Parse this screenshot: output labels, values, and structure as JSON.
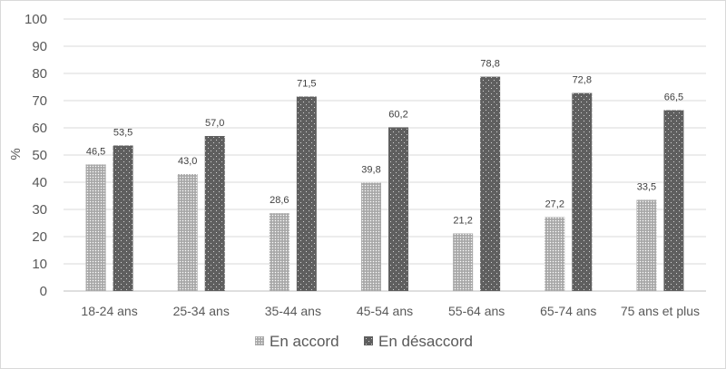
{
  "chart_data": {
    "type": "bar",
    "title": "",
    "xlabel": "",
    "ylabel": "%",
    "ylim": [
      0,
      100
    ],
    "yticks": [
      0,
      10,
      20,
      30,
      40,
      50,
      60,
      70,
      80,
      90,
      100
    ],
    "grid": true,
    "legend_position": "bottom",
    "categories": [
      "18-24 ans",
      "25-34 ans",
      "35-44 ans",
      "45-54 ans",
      "55-64 ans",
      "65-74 ans",
      "75 ans et plus"
    ],
    "series": [
      {
        "name": "En accord",
        "values": [
          46.5,
          43.0,
          28.6,
          39.8,
          21.2,
          27.2,
          33.5
        ],
        "labels": [
          "46,5",
          "43,0",
          "28,6",
          "39,8",
          "21,2",
          "27,2",
          "33,5"
        ],
        "color": "#a6a6a6",
        "pattern": "fine-dots"
      },
      {
        "name": "En désaccord",
        "values": [
          53.5,
          57.0,
          71.5,
          60.2,
          78.8,
          72.8,
          66.5
        ],
        "labels": [
          "53,5",
          "57,0",
          "71,5",
          "60,2",
          "78,8",
          "72,8",
          "66,5"
        ],
        "color": "#595959",
        "pattern": "sparse-dots"
      }
    ]
  }
}
